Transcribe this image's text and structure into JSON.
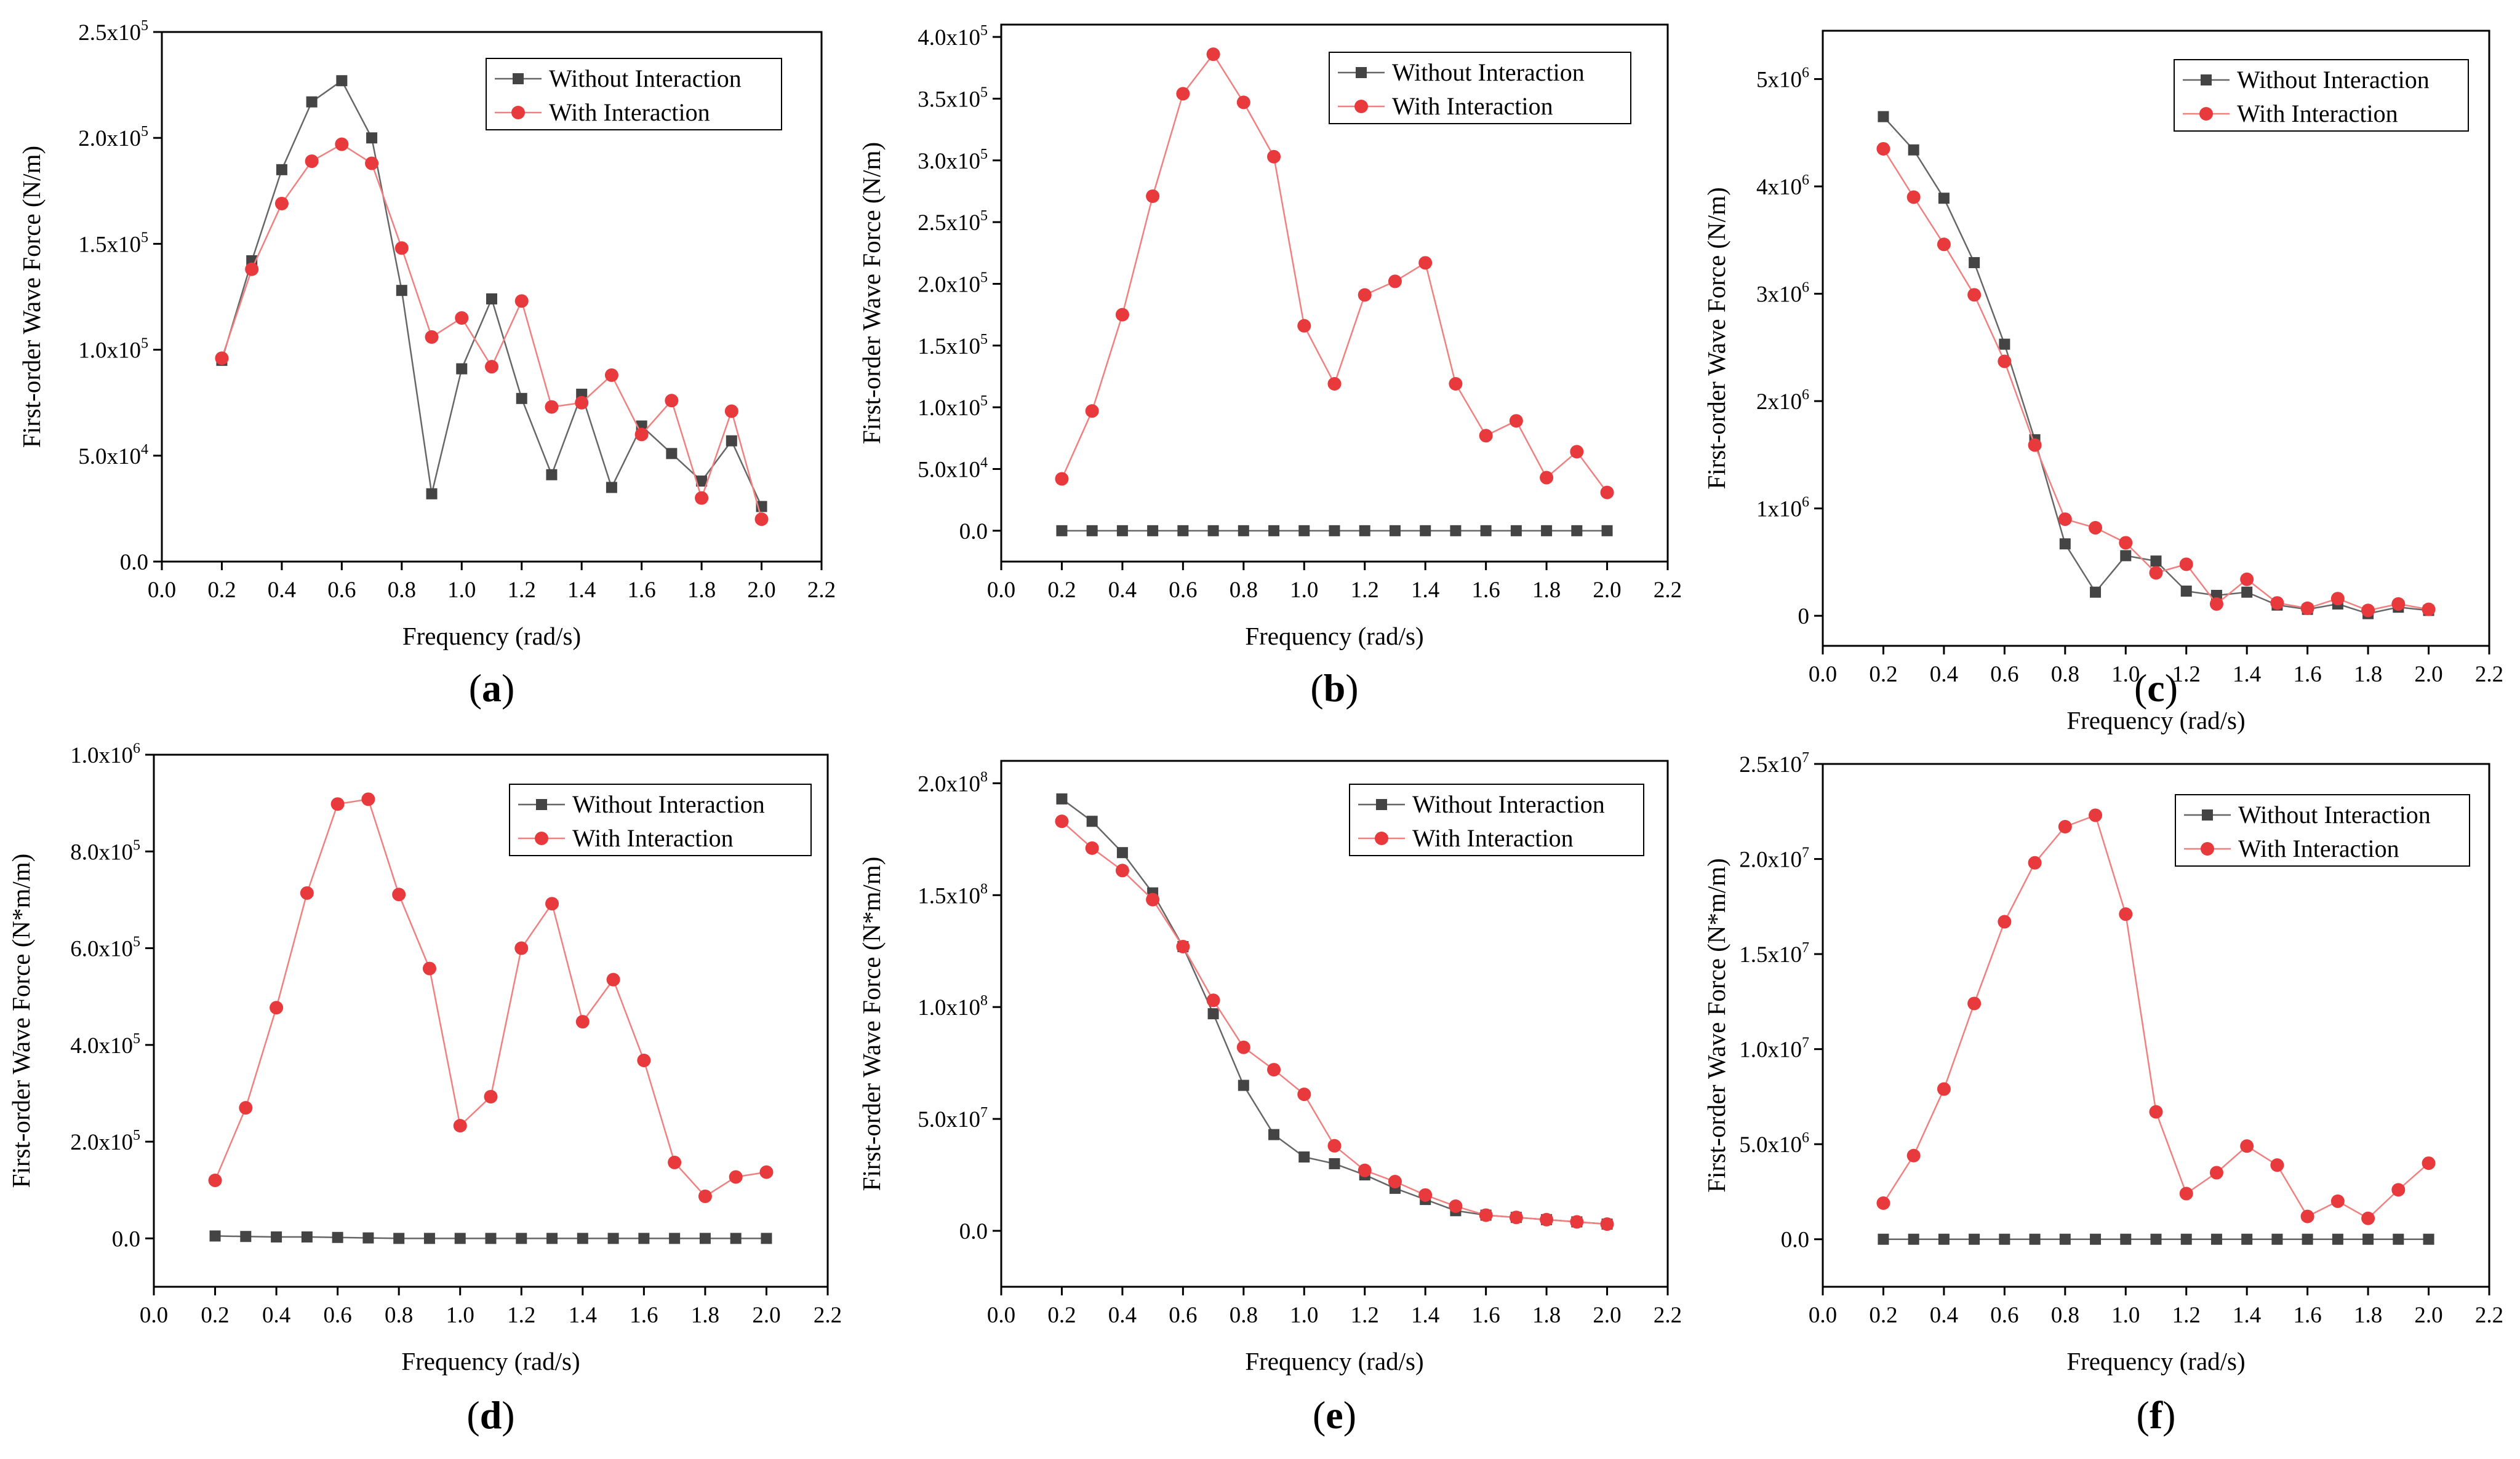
{
  "colors": {
    "without": "#444444",
    "with": "#e8393c",
    "line_with": "#f08080",
    "line_without": "#666666"
  },
  "chart_data": [
    {
      "id": "a",
      "type": "line",
      "panel_label": "a",
      "xlabel": "Frequency (rad/s)",
      "ylabel": "First-order Wave Force (N/m)",
      "xlim": [
        0,
        2.2
      ],
      "ylim": [
        0,
        250000
      ],
      "xticks": [
        0,
        0.2,
        0.4,
        0.6,
        0.8,
        1.0,
        1.2,
        1.4,
        1.6,
        1.8,
        2.0,
        2.2
      ],
      "xtick_labels": [
        "0.0",
        "0.2",
        "0.4",
        "0.6",
        "0.8",
        "1.0",
        "1.2",
        "1.4",
        "1.6",
        "1.8",
        "2.0",
        "2.2"
      ],
      "yticks": [
        0,
        50000,
        100000,
        150000,
        200000,
        250000
      ],
      "ytick_labels": [
        {
          "m": "0.0",
          "e": ""
        },
        {
          "m": "5.0x10",
          "e": "4"
        },
        {
          "m": "1.0x10",
          "e": "5"
        },
        {
          "m": "1.5x10",
          "e": "5"
        },
        {
          "m": "2.0x10",
          "e": "5"
        },
        {
          "m": "2.5x10",
          "e": "5"
        }
      ],
      "legend_position": "top-right",
      "x": [
        0.2,
        0.3,
        0.4,
        0.5,
        0.6,
        0.7,
        0.8,
        0.9,
        1.0,
        1.1,
        1.2,
        1.3,
        1.4,
        1.5,
        1.6,
        1.7,
        1.8,
        1.9,
        2.0
      ],
      "series": [
        {
          "name": "Without Interaction",
          "marker": "square",
          "values": [
            95000,
            142000,
            185000,
            217000,
            227000,
            200000,
            128000,
            32000,
            91000,
            124000,
            77000,
            41000,
            79000,
            35000,
            64000,
            51000,
            38000,
            57000,
            26000
          ]
        },
        {
          "name": "With Interaction",
          "marker": "circle",
          "values": [
            96000,
            138000,
            169000,
            189000,
            197000,
            188000,
            148000,
            106000,
            115000,
            92000,
            123000,
            73000,
            75000,
            88000,
            60000,
            76000,
            30000,
            71000,
            20000
          ]
        }
      ]
    },
    {
      "id": "b",
      "type": "line",
      "panel_label": "b",
      "xlabel": "Frequency (rad/s)",
      "ylabel": "First-order Wave Force (N/m)",
      "xlim": [
        0,
        2.2
      ],
      "ylim": [
        -25000,
        410000
      ],
      "xticks": [
        0,
        0.2,
        0.4,
        0.6,
        0.8,
        1.0,
        1.2,
        1.4,
        1.6,
        1.8,
        2.0,
        2.2
      ],
      "xtick_labels": [
        "0.0",
        "0.2",
        "0.4",
        "0.6",
        "0.8",
        "1.0",
        "1.2",
        "1.4",
        "1.6",
        "1.8",
        "2.0",
        "2.2"
      ],
      "yticks": [
        0,
        50000,
        100000,
        150000,
        200000,
        250000,
        300000,
        350000,
        400000
      ],
      "ytick_labels": [
        {
          "m": "0.0",
          "e": ""
        },
        {
          "m": "5.0x10",
          "e": "4"
        },
        {
          "m": "1.0x10",
          "e": "5"
        },
        {
          "m": "1.5x10",
          "e": "5"
        },
        {
          "m": "2.0x10",
          "e": "5"
        },
        {
          "m": "2.5x10",
          "e": "5"
        },
        {
          "m": "3.0x10",
          "e": "5"
        },
        {
          "m": "3.5x10",
          "e": "5"
        },
        {
          "m": "4.0x10",
          "e": "5"
        }
      ],
      "legend_position": "top-right",
      "x": [
        0.2,
        0.3,
        0.4,
        0.5,
        0.6,
        0.7,
        0.8,
        0.9,
        1.0,
        1.1,
        1.2,
        1.3,
        1.4,
        1.5,
        1.6,
        1.7,
        1.8,
        1.9,
        2.0
      ],
      "series": [
        {
          "name": "Without Interaction",
          "marker": "square",
          "values": [
            0,
            0,
            0,
            0,
            0,
            0,
            0,
            0,
            0,
            0,
            0,
            0,
            0,
            0,
            0,
            0,
            0,
            0,
            0
          ]
        },
        {
          "name": "With Interaction",
          "marker": "circle",
          "values": [
            42000,
            97000,
            175000,
            271000,
            354000,
            386000,
            347000,
            303000,
            166000,
            119000,
            191000,
            202000,
            217000,
            119000,
            77000,
            89000,
            43000,
            64000,
            31000
          ]
        }
      ]
    },
    {
      "id": "c",
      "type": "line",
      "panel_label": "c",
      "xlabel": "Frequency (rad/s)",
      "ylabel": "First-order Wave Force (N/m)",
      "xlim": [
        0,
        2.2
      ],
      "ylim": [
        -280000,
        5450000
      ],
      "xticks": [
        0,
        0.2,
        0.4,
        0.6,
        0.8,
        1.0,
        1.2,
        1.4,
        1.6,
        1.8,
        2.0,
        2.2
      ],
      "xtick_labels": [
        "0.0",
        "0.2",
        "0.4",
        "0.6",
        "0.8",
        "1.0",
        "1.2",
        "1.4",
        "1.6",
        "1.8",
        "2.0",
        "2.2"
      ],
      "yticks": [
        0,
        1000000,
        2000000,
        3000000,
        4000000,
        5000000
      ],
      "ytick_labels": [
        {
          "m": "0",
          "e": ""
        },
        {
          "m": "1x10",
          "e": "6"
        },
        {
          "m": "2x10",
          "e": "6"
        },
        {
          "m": "3x10",
          "e": "6"
        },
        {
          "m": "4x10",
          "e": "6"
        },
        {
          "m": "5x10",
          "e": "6"
        }
      ],
      "legend_position": "top-right",
      "x": [
        0.2,
        0.3,
        0.4,
        0.5,
        0.6,
        0.7,
        0.8,
        0.9,
        1.0,
        1.1,
        1.2,
        1.3,
        1.4,
        1.5,
        1.6,
        1.7,
        1.8,
        1.9,
        2.0
      ],
      "series": [
        {
          "name": "Without Interaction",
          "marker": "square",
          "values": [
            4650000,
            4340000,
            3890000,
            3290000,
            2530000,
            1640000,
            670000,
            220000,
            560000,
            510000,
            230000,
            190000,
            220000,
            100000,
            60000,
            110000,
            20000,
            80000,
            50000
          ]
        },
        {
          "name": "With Interaction",
          "marker": "circle",
          "values": [
            4350000,
            3900000,
            3460000,
            2990000,
            2370000,
            1590000,
            900000,
            820000,
            680000,
            400000,
            480000,
            110000,
            340000,
            120000,
            70000,
            160000,
            50000,
            110000,
            60000
          ]
        }
      ]
    },
    {
      "id": "d",
      "type": "line",
      "panel_label": "d",
      "xlabel": "Frequency (rad/s)",
      "ylabel": "First-order Wave Force (N*m/m)",
      "xlim": [
        0,
        2.2
      ],
      "ylim": [
        -100000,
        1000000
      ],
      "xticks": [
        0,
        0.2,
        0.4,
        0.6,
        0.8,
        1.0,
        1.2,
        1.4,
        1.6,
        1.8,
        2.0,
        2.2
      ],
      "xtick_labels": [
        "0.0",
        "0.2",
        "0.4",
        "0.6",
        "0.8",
        "1.0",
        "1.2",
        "1.4",
        "1.6",
        "1.8",
        "2.0",
        "2.2"
      ],
      "yticks": [
        0,
        200000,
        400000,
        600000,
        800000,
        1000000
      ],
      "ytick_labels": [
        {
          "m": "0.0",
          "e": ""
        },
        {
          "m": "2.0x10",
          "e": "5"
        },
        {
          "m": "4.0x10",
          "e": "5"
        },
        {
          "m": "6.0x10",
          "e": "5"
        },
        {
          "m": "8.0x10",
          "e": "5"
        },
        {
          "m": "1.0x10",
          "e": "6"
        }
      ],
      "legend_position": "top-right",
      "x": [
        0.2,
        0.3,
        0.4,
        0.5,
        0.6,
        0.7,
        0.8,
        0.9,
        1.0,
        1.1,
        1.2,
        1.3,
        1.4,
        1.5,
        1.6,
        1.7,
        1.8,
        1.9,
        2.0
      ],
      "series": [
        {
          "name": "Without Interaction",
          "marker": "square",
          "values": [
            5000,
            4000,
            3000,
            3000,
            2000,
            1000,
            0,
            0,
            0,
            0,
            0,
            0,
            0,
            0,
            0,
            0,
            0,
            0,
            0
          ]
        },
        {
          "name": "With Interaction",
          "marker": "circle",
          "values": [
            120000,
            270000,
            477000,
            714000,
            898000,
            908000,
            711000,
            558000,
            233000,
            293000,
            600000,
            692000,
            448000,
            535000,
            368000,
            157000,
            87000,
            127000,
            137000
          ]
        }
      ]
    },
    {
      "id": "e",
      "type": "line",
      "panel_label": "e",
      "xlabel": "Frequency (rad/s)",
      "ylabel": "First-order Wave Force (N*m/m)",
      "xlim": [
        0,
        2.2
      ],
      "ylim": [
        -25000000,
        210000000
      ],
      "xticks": [
        0,
        0.2,
        0.4,
        0.6,
        0.8,
        1.0,
        1.2,
        1.4,
        1.6,
        1.8,
        2.0,
        2.2
      ],
      "xtick_labels": [
        "0.0",
        "0.2",
        "0.4",
        "0.6",
        "0.8",
        "1.0",
        "1.2",
        "1.4",
        "1.6",
        "1.8",
        "2.0",
        "2.2"
      ],
      "yticks": [
        0,
        50000000,
        100000000,
        150000000,
        200000000
      ],
      "ytick_labels": [
        {
          "m": "0.0",
          "e": ""
        },
        {
          "m": "5.0x10",
          "e": "7"
        },
        {
          "m": "1.0x10",
          "e": "8"
        },
        {
          "m": "1.5x10",
          "e": "8"
        },
        {
          "m": "2.0x10",
          "e": "8"
        }
      ],
      "legend_position": "top-right",
      "x": [
        0.2,
        0.3,
        0.4,
        0.5,
        0.6,
        0.7,
        0.8,
        0.9,
        1.0,
        1.1,
        1.2,
        1.3,
        1.4,
        1.5,
        1.6,
        1.7,
        1.8,
        1.9,
        2.0
      ],
      "series": [
        {
          "name": "Without Interaction",
          "marker": "square",
          "values": [
            193000000,
            183000000,
            169000000,
            151000000,
            127000000,
            97000000,
            65000000,
            43000000,
            33000000,
            30000000,
            25000000,
            19000000,
            14000000,
            9000000,
            7000000,
            6000000,
            5000000,
            4000000,
            3000000
          ]
        },
        {
          "name": "With Interaction",
          "marker": "circle",
          "values": [
            183000000,
            171000000,
            161000000,
            148000000,
            127000000,
            103000000,
            82000000,
            72000000,
            61000000,
            38000000,
            27000000,
            22000000,
            16000000,
            11000000,
            7000000,
            6000000,
            5000000,
            4000000,
            3000000
          ]
        }
      ]
    },
    {
      "id": "f",
      "type": "line",
      "panel_label": "f",
      "xlabel": "Frequency (rad/s)",
      "ylabel": "First-order Wave Force (N*m/m)",
      "xlim": [
        0,
        2.2
      ],
      "ylim": [
        -2500000,
        25000000
      ],
      "xticks": [
        0,
        0.2,
        0.4,
        0.6,
        0.8,
        1.0,
        1.2,
        1.4,
        1.6,
        1.8,
        2.0,
        2.2
      ],
      "xtick_labels": [
        "0.0",
        "0.2",
        "0.4",
        "0.6",
        "0.8",
        "1.0",
        "1.2",
        "1.4",
        "1.6",
        "1.8",
        "2.0",
        "2.2"
      ],
      "yticks": [
        0,
        5000000,
        10000000,
        15000000,
        20000000,
        25000000
      ],
      "ytick_labels": [
        {
          "m": "0.0",
          "e": ""
        },
        {
          "m": "5.0x10",
          "e": "6"
        },
        {
          "m": "1.0x10",
          "e": "7"
        },
        {
          "m": "1.5x10",
          "e": "7"
        },
        {
          "m": "2.0x10",
          "e": "7"
        },
        {
          "m": "2.5x10",
          "e": "7"
        }
      ],
      "legend_position": "top-right",
      "x": [
        0.2,
        0.3,
        0.4,
        0.5,
        0.6,
        0.7,
        0.8,
        0.9,
        1.0,
        1.1,
        1.2,
        1.3,
        1.4,
        1.5,
        1.6,
        1.7,
        1.8,
        1.9,
        2.0
      ],
      "series": [
        {
          "name": "Without Interaction",
          "marker": "square",
          "values": [
            0,
            0,
            0,
            0,
            0,
            0,
            0,
            0,
            0,
            0,
            0,
            0,
            0,
            0,
            0,
            0,
            0,
            0,
            0
          ]
        },
        {
          "name": "With Interaction",
          "marker": "circle",
          "values": [
            1900000,
            4400000,
            7900000,
            12400000,
            16700000,
            19800000,
            21700000,
            22300000,
            17100000,
            6700000,
            2400000,
            3500000,
            4900000,
            3900000,
            1200000,
            2000000,
            1100000,
            2600000,
            4000000
          ]
        }
      ]
    }
  ]
}
